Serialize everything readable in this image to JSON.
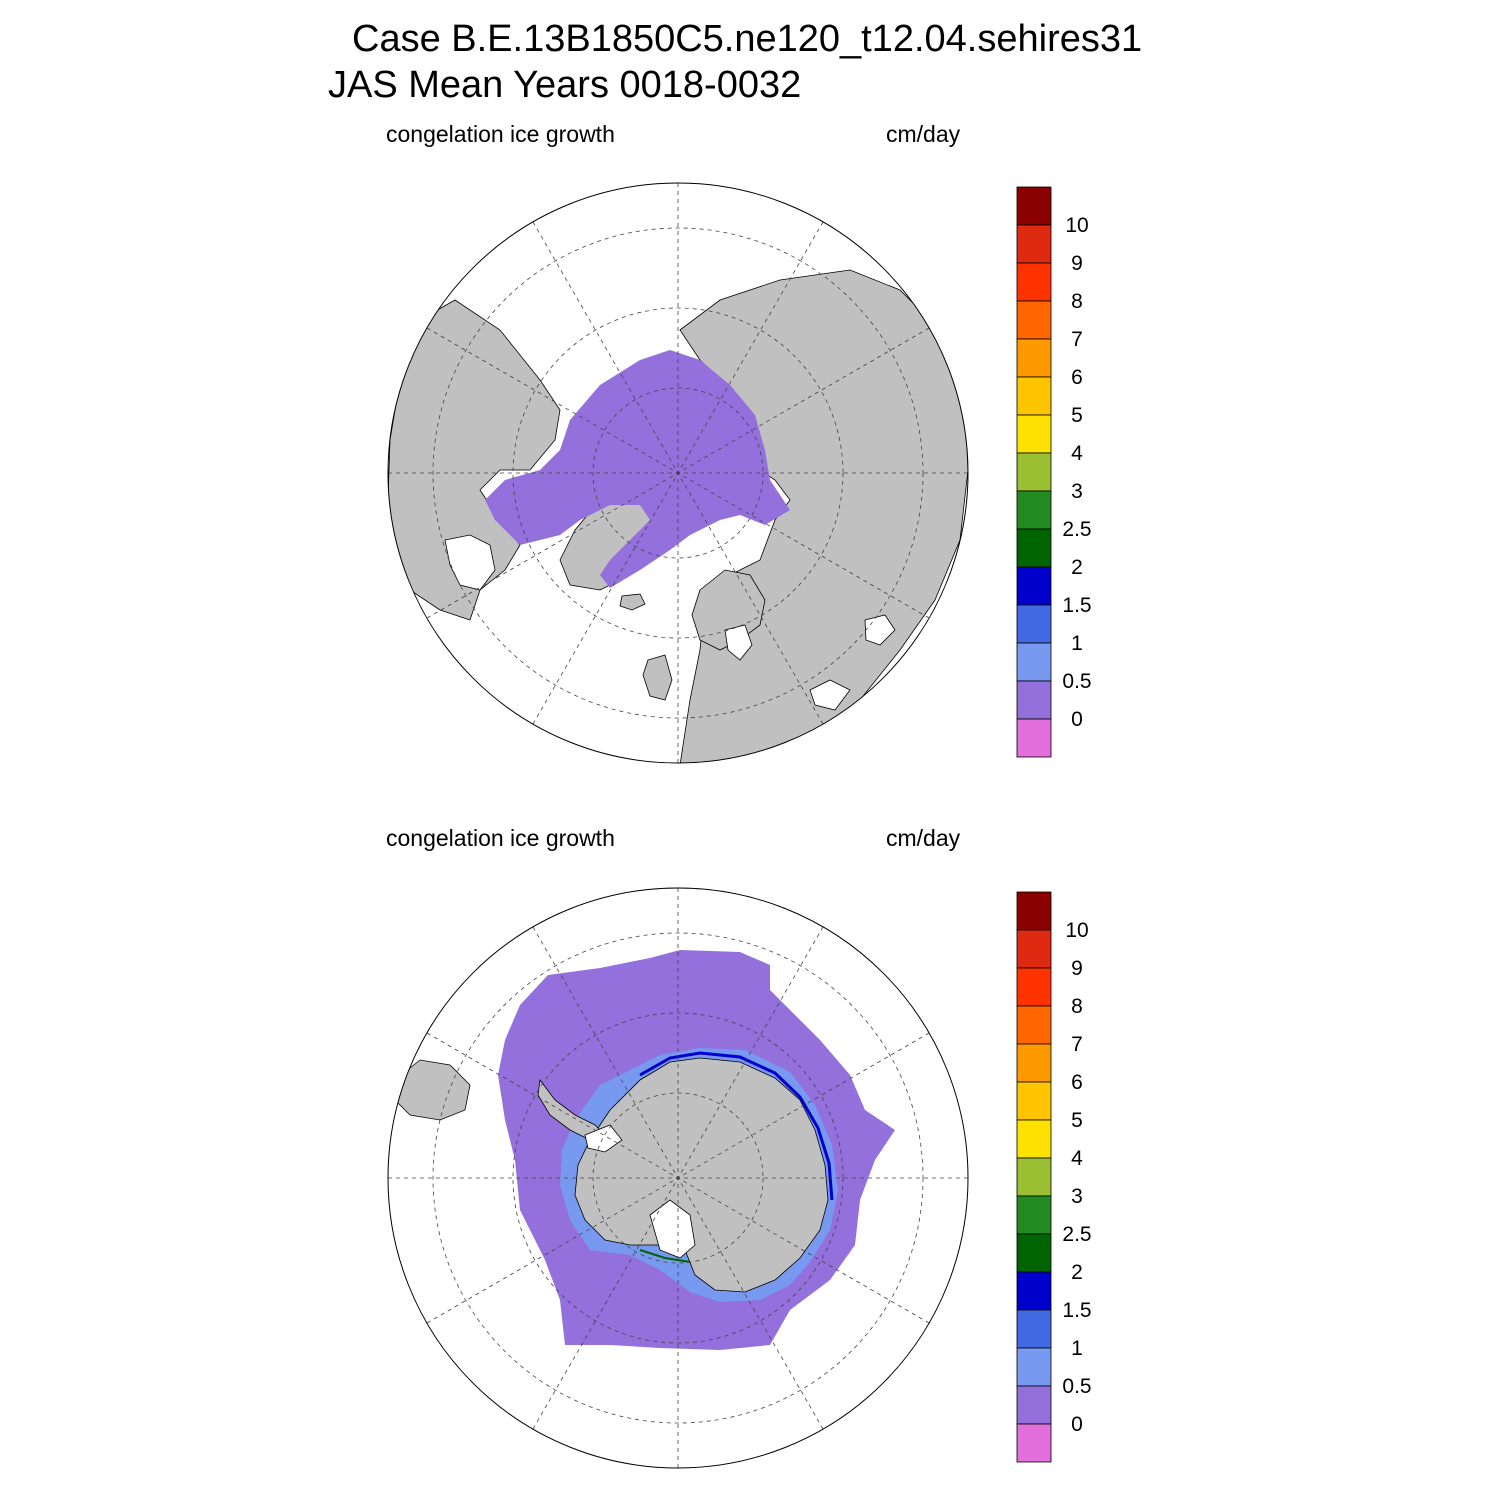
{
  "title": {
    "line1": "Case B.E.13B1850C5.ne120_t12.04.sehires31",
    "line2": "JAS Mean   Years 0018-0032"
  },
  "panels": [
    {
      "id": "north",
      "hemisphere": "Northern Hemisphere (polar stereographic)",
      "variable_label": "congelation ice growth",
      "units_label": "cm/day"
    },
    {
      "id": "south",
      "hemisphere": "Southern Hemisphere (polar stereographic)",
      "variable_label": "congelation ice growth",
      "units_label": "cm/day"
    }
  ],
  "colorbar": {
    "labels": [
      "10",
      "9",
      "8",
      "7",
      "6",
      "5",
      "4",
      "3",
      "2.5",
      "2",
      "1.5",
      "1",
      "0.5",
      "0"
    ],
    "colors": [
      "#8b0000",
      "#dd2a10",
      "#ff3300",
      "#ff6600",
      "#ff9900",
      "#ffc400",
      "#ffe100",
      "#9bbf32",
      "#228b22",
      "#006400",
      "#0000cd",
      "#4169e1",
      "#7799f0",
      "#9370db",
      "#e36fdc"
    ]
  },
  "colors": {
    "land": "#c0c0c0",
    "ocean": "#ffffff",
    "ice_low": "#9370db"
  }
}
